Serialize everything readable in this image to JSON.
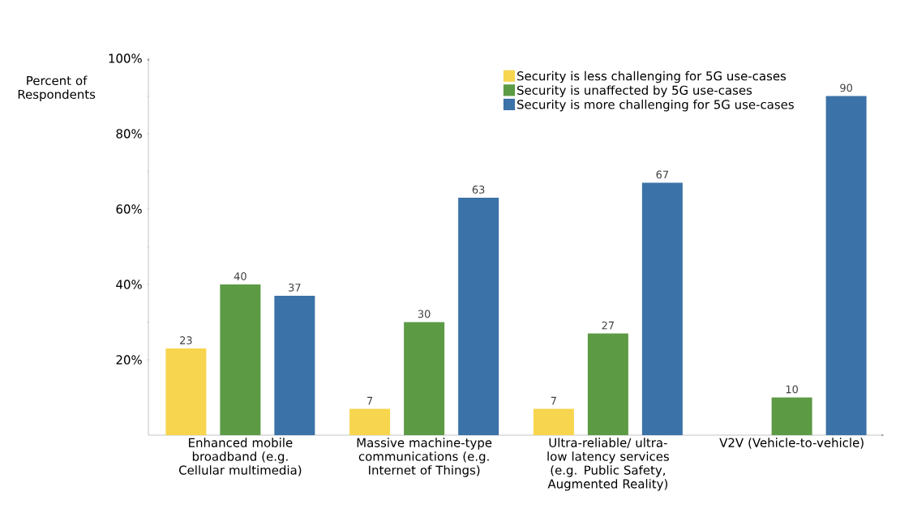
{
  "chart_data": {
    "type": "bar",
    "ylabel": "Percent of Respondents",
    "categories": [
      "Enhanced mobile broadband (e.g. Cellular multimedia)",
      "Massive machine-type communications (e.g. Internet of Things)",
      "Ultra-reliable/ ultra-low latency services (e.g. Public Safety, Augmented Reality)",
      "V2V (Vehicle-to-vehicle)"
    ],
    "series": [
      {
        "name": "Security is less challenging for 5G use-cases",
        "color": "#f7d54e",
        "values": [
          23,
          7,
          7,
          null
        ]
      },
      {
        "name": "Security is unaffected by 5G use-cases",
        "color": "#5c9a44",
        "values": [
          40,
          30,
          27,
          10
        ]
      },
      {
        "name": "Security is more challenging for 5G use-cases",
        "color": "#3b72a8",
        "values": [
          37,
          63,
          67,
          90
        ]
      }
    ],
    "ylim": [
      0,
      100
    ],
    "yticks": [
      {
        "value": 20,
        "label": "20%"
      },
      {
        "value": 40,
        "label": "40%"
      },
      {
        "value": 60,
        "label": "60%"
      },
      {
        "value": 80,
        "label": "80%"
      },
      {
        "value": 100,
        "label": "100%"
      }
    ],
    "data_labels": true,
    "legend": "top right",
    "grid": false
  }
}
